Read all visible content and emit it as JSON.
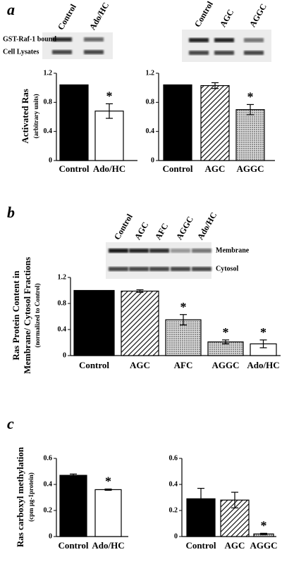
{
  "panel_labels": [
    "a",
    "b",
    "c"
  ],
  "blots": [
    {
      "lanes": [
        "Control",
        "Ado/HC"
      ],
      "rows": [
        "GST-Raf-1 bound",
        "Cell Lysates"
      ]
    },
    {
      "lanes": [
        "Control",
        "AGC",
        "AGGC"
      ]
    },
    {
      "lanes": [
        "Control",
        "AGC",
        "AFC",
        "AGGC",
        "Ado/HC"
      ],
      "rows": [
        "Membrane",
        "Cytosol"
      ]
    }
  ],
  "chart_data": [
    {
      "type": "bar",
      "y_label": [
        "Activated Ras",
        "(arbitrary units)"
      ],
      "categories": [
        "Control",
        "Ado/HC"
      ],
      "values": [
        1.04,
        0.68
      ],
      "errors": [
        0,
        0.1
      ],
      "annotations": [
        null,
        "*"
      ],
      "patterns": [
        "solid",
        "open"
      ],
      "color": "#000000",
      "ylim": [
        0,
        1.2
      ],
      "yticks": [
        0,
        0.4,
        0.8,
        1.2
      ]
    },
    {
      "type": "bar",
      "categories": [
        "Control",
        "AGC",
        "AGGC"
      ],
      "values": [
        1.04,
        1.03,
        0.7
      ],
      "errors": [
        0,
        0.04,
        0.07
      ],
      "annotations": [
        null,
        null,
        "*"
      ],
      "patterns": [
        "solid",
        "hatch",
        "dots"
      ],
      "color": "#000000",
      "ylim": [
        0,
        1.2
      ],
      "yticks": [
        0,
        0.4,
        0.8,
        1.2
      ]
    },
    {
      "type": "bar",
      "y_label": [
        "Ras Protein Content in",
        "Membrane/ Cytosol Fractions",
        "(normalized to Control)"
      ],
      "categories": [
        "Control",
        "AGC",
        "AFC",
        "AGGC",
        "Ado/HC"
      ],
      "values": [
        1.0,
        0.99,
        0.55,
        0.21,
        0.18
      ],
      "errors": [
        0,
        0.02,
        0.08,
        0.03,
        0.06
      ],
      "annotations": [
        null,
        null,
        "*",
        "*",
        "*"
      ],
      "patterns": [
        "solid",
        "hatch",
        "dots",
        "dots",
        "open"
      ],
      "color": "#000000",
      "ylim": [
        0,
        1.2
      ],
      "yticks": [
        0,
        0.4,
        0.8,
        1.2
      ]
    },
    {
      "type": "bar",
      "y_label": [
        "Ras carboxyl methylation",
        "(cpm µg-1protein)"
      ],
      "categories": [
        "Control",
        "Ado/HC"
      ],
      "values": [
        0.47,
        0.36
      ],
      "errors": [
        0.01,
        0.005
      ],
      "annotations": [
        null,
        "*"
      ],
      "patterns": [
        "solid",
        "open"
      ],
      "color": "#000000",
      "ylim": [
        0,
        0.6
      ],
      "yticks": [
        0,
        0.2,
        0.4,
        0.6
      ]
    },
    {
      "type": "bar",
      "categories": [
        "Control",
        "AGC",
        "AGGC"
      ],
      "values": [
        0.29,
        0.28,
        0.02
      ],
      "errors": [
        0.08,
        0.06,
        0.005
      ],
      "annotations": [
        null,
        null,
        "*"
      ],
      "patterns": [
        "solid",
        "hatch",
        "dots"
      ],
      "color": "#000000",
      "ylim": [
        0,
        0.6
      ],
      "yticks": [
        0,
        0.2,
        0.4,
        0.6
      ]
    }
  ]
}
